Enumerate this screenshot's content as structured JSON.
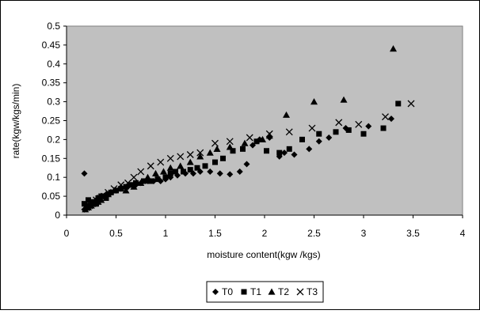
{
  "chart_data": {
    "type": "scatter",
    "title": "",
    "xlabel": "moisture content(kgw /kgs)",
    "ylabel": "rate(kgw/kgs/min)",
    "xlim": [
      0,
      4
    ],
    "ylim": [
      0,
      0.5
    ],
    "x_ticks": [
      "0",
      "0.5",
      "1",
      "1.5",
      "2",
      "2.5",
      "3",
      "3.5",
      "4"
    ],
    "y_ticks": [
      "0",
      "0.05",
      "0.1",
      "0.15",
      "0.2",
      "0.25",
      "0.3",
      "0.35",
      "0.4",
      "0.45",
      "0.5"
    ],
    "grid": false,
    "plot_background": "#c0c0c0",
    "legend_position": "bottom",
    "series": [
      {
        "name": "T0",
        "marker": "diamond",
        "color": "#000000",
        "points": [
          [
            0.18,
            0.11
          ],
          [
            0.18,
            0.015
          ],
          [
            0.2,
            0.02
          ],
          [
            0.22,
            0.025
          ],
          [
            0.25,
            0.03
          ],
          [
            0.28,
            0.035
          ],
          [
            0.3,
            0.04
          ],
          [
            0.33,
            0.045
          ],
          [
            0.36,
            0.05
          ],
          [
            0.4,
            0.055
          ],
          [
            0.45,
            0.06
          ],
          [
            0.5,
            0.065
          ],
          [
            0.55,
            0.07
          ],
          [
            0.62,
            0.075
          ],
          [
            0.7,
            0.08
          ],
          [
            0.75,
            0.085
          ],
          [
            0.82,
            0.09
          ],
          [
            0.88,
            0.09
          ],
          [
            0.95,
            0.09
          ],
          [
            1.0,
            0.095
          ],
          [
            1.05,
            0.1
          ],
          [
            1.12,
            0.105
          ],
          [
            1.2,
            0.11
          ],
          [
            1.28,
            0.11
          ],
          [
            1.35,
            0.115
          ],
          [
            1.45,
            0.115
          ],
          [
            1.55,
            0.11
          ],
          [
            1.65,
            0.108
          ],
          [
            1.75,
            0.115
          ],
          [
            1.82,
            0.135
          ],
          [
            1.88,
            0.185
          ],
          [
            1.95,
            0.2
          ],
          [
            2.05,
            0.205
          ],
          [
            2.15,
            0.155
          ],
          [
            2.2,
            0.165
          ],
          [
            2.3,
            0.16
          ],
          [
            2.45,
            0.175
          ],
          [
            2.55,
            0.195
          ],
          [
            2.65,
            0.205
          ],
          [
            2.82,
            0.23
          ],
          [
            3.05,
            0.235
          ],
          [
            3.28,
            0.255
          ]
        ]
      },
      {
        "name": "T1",
        "marker": "square",
        "color": "#000000",
        "points": [
          [
            0.18,
            0.03
          ],
          [
            0.2,
            0.02
          ],
          [
            0.22,
            0.04
          ],
          [
            0.24,
            0.025
          ],
          [
            0.27,
            0.035
          ],
          [
            0.3,
            0.03
          ],
          [
            0.32,
            0.045
          ],
          [
            0.35,
            0.05
          ],
          [
            0.4,
            0.045
          ],
          [
            0.45,
            0.06
          ],
          [
            0.5,
            0.065
          ],
          [
            0.55,
            0.07
          ],
          [
            0.6,
            0.075
          ],
          [
            0.65,
            0.08
          ],
          [
            0.7,
            0.085
          ],
          [
            0.78,
            0.09
          ],
          [
            0.85,
            0.09
          ],
          [
            0.92,
            0.095
          ],
          [
            1.0,
            0.1
          ],
          [
            1.05,
            0.11
          ],
          [
            1.1,
            0.115
          ],
          [
            1.18,
            0.115
          ],
          [
            1.25,
            0.12
          ],
          [
            1.32,
            0.125
          ],
          [
            1.4,
            0.13
          ],
          [
            1.5,
            0.14
          ],
          [
            1.58,
            0.15
          ],
          [
            1.68,
            0.17
          ],
          [
            1.78,
            0.175
          ],
          [
            1.92,
            0.195
          ],
          [
            2.02,
            0.17
          ],
          [
            2.15,
            0.165
          ],
          [
            2.25,
            0.175
          ],
          [
            2.38,
            0.2
          ],
          [
            2.55,
            0.215
          ],
          [
            2.72,
            0.22
          ],
          [
            2.85,
            0.225
          ],
          [
            3.0,
            0.215
          ],
          [
            3.2,
            0.23
          ],
          [
            3.35,
            0.295
          ]
        ]
      },
      {
        "name": "T2",
        "marker": "triangle",
        "color": "#000000",
        "points": [
          [
            0.19,
            0.015
          ],
          [
            0.22,
            0.02
          ],
          [
            0.25,
            0.025
          ],
          [
            0.28,
            0.03
          ],
          [
            0.32,
            0.035
          ],
          [
            0.35,
            0.04
          ],
          [
            0.38,
            0.05
          ],
          [
            0.42,
            0.055
          ],
          [
            0.48,
            0.065
          ],
          [
            0.55,
            0.07
          ],
          [
            0.6,
            0.065
          ],
          [
            0.68,
            0.075
          ],
          [
            0.75,
            0.085
          ],
          [
            0.82,
            0.1
          ],
          [
            0.9,
            0.11
          ],
          [
            0.98,
            0.115
          ],
          [
            1.05,
            0.125
          ],
          [
            1.15,
            0.13
          ],
          [
            1.25,
            0.14
          ],
          [
            1.35,
            0.155
          ],
          [
            1.45,
            0.165
          ],
          [
            1.52,
            0.175
          ],
          [
            1.65,
            0.18
          ],
          [
            1.8,
            0.19
          ],
          [
            1.98,
            0.2
          ],
          [
            2.05,
            0.21
          ],
          [
            2.22,
            0.265
          ],
          [
            2.5,
            0.3
          ],
          [
            2.8,
            0.305
          ],
          [
            3.3,
            0.44
          ]
        ]
      },
      {
        "name": "T3",
        "marker": "x",
        "color": "#000000",
        "points": [
          [
            0.2,
            0.02
          ],
          [
            0.23,
            0.025
          ],
          [
            0.26,
            0.03
          ],
          [
            0.3,
            0.04
          ],
          [
            0.34,
            0.045
          ],
          [
            0.38,
            0.05
          ],
          [
            0.42,
            0.06
          ],
          [
            0.48,
            0.07
          ],
          [
            0.55,
            0.08
          ],
          [
            0.62,
            0.085
          ],
          [
            0.68,
            0.1
          ],
          [
            0.75,
            0.115
          ],
          [
            0.85,
            0.13
          ],
          [
            0.95,
            0.14
          ],
          [
            1.05,
            0.15
          ],
          [
            1.15,
            0.155
          ],
          [
            1.25,
            0.16
          ],
          [
            1.35,
            0.165
          ],
          [
            1.5,
            0.19
          ],
          [
            1.65,
            0.195
          ],
          [
            1.85,
            0.205
          ],
          [
            2.05,
            0.215
          ],
          [
            2.25,
            0.22
          ],
          [
            2.48,
            0.23
          ],
          [
            2.75,
            0.245
          ],
          [
            2.95,
            0.24
          ],
          [
            3.22,
            0.26
          ],
          [
            3.48,
            0.295
          ]
        ]
      }
    ]
  }
}
